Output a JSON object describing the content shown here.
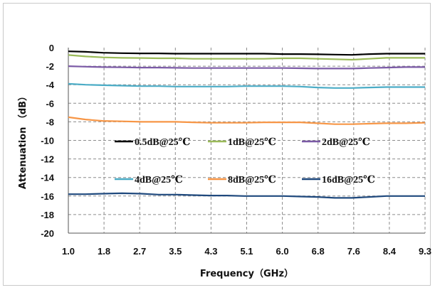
{
  "chart_data": {
    "type": "line",
    "title": "",
    "xlabel": "Frequency（GHz）",
    "ylabel": "Attenuation （dB）",
    "x_tick_labels": [
      "1.0",
      "1.8",
      "2.7",
      "3.5",
      "4.3",
      "5.1",
      "6.0",
      "6.8",
      "7.6",
      "8.4",
      "9.3"
    ],
    "y_tick_labels": [
      "0",
      "-2",
      "-4",
      "-6",
      "-8",
      "-10",
      "-12",
      "-14",
      "-16",
      "-18",
      "-20"
    ],
    "xlim": [
      1.0,
      9.3
    ],
    "ylim": [
      -20,
      0
    ],
    "grid": "dashed",
    "legend_position": "inside-center",
    "x": [
      1.0,
      1.4,
      1.8,
      2.25,
      2.7,
      3.1,
      3.5,
      3.9,
      4.3,
      4.7,
      5.1,
      5.55,
      6.0,
      6.4,
      6.8,
      7.2,
      7.6,
      8.0,
      8.4,
      8.85,
      9.3
    ],
    "series": [
      {
        "name": "0.5dB@25℃",
        "color": "#000000",
        "values": [
          -0.4,
          -0.45,
          -0.55,
          -0.6,
          -0.62,
          -0.62,
          -0.65,
          -0.65,
          -0.65,
          -0.65,
          -0.65,
          -0.65,
          -0.7,
          -0.7,
          -0.72,
          -0.75,
          -0.78,
          -0.7,
          -0.65,
          -0.65,
          -0.65
        ]
      },
      {
        "name": "1dB@25℃",
        "color": "#9bbb59",
        "values": [
          -0.8,
          -0.95,
          -1.05,
          -1.1,
          -1.12,
          -1.15,
          -1.15,
          -1.2,
          -1.2,
          -1.2,
          -1.2,
          -1.2,
          -1.15,
          -1.15,
          -1.2,
          -1.25,
          -1.3,
          -1.2,
          -1.1,
          -1.1,
          -1.1
        ]
      },
      {
        "name": "2dB@25℃",
        "color": "#7b5aa6",
        "values": [
          -2.0,
          -2.05,
          -2.1,
          -2.12,
          -2.15,
          -2.15,
          -2.18,
          -2.2,
          -2.2,
          -2.2,
          -2.2,
          -2.2,
          -2.2,
          -2.22,
          -2.25,
          -2.25,
          -2.25,
          -2.2,
          -2.15,
          -2.1,
          -2.1
        ]
      },
      {
        "name": "4dB@25℃",
        "color": "#4bacc6",
        "values": [
          -3.9,
          -4.0,
          -4.05,
          -4.1,
          -4.15,
          -4.15,
          -4.2,
          -4.2,
          -4.2,
          -4.2,
          -4.15,
          -4.15,
          -4.15,
          -4.2,
          -4.3,
          -4.35,
          -4.35,
          -4.3,
          -4.25,
          -4.25,
          -4.25
        ]
      },
      {
        "name": "8dB@25℃",
        "color": "#f79646",
        "values": [
          -7.5,
          -7.75,
          -7.9,
          -7.95,
          -8.0,
          -8.0,
          -8.0,
          -8.05,
          -8.1,
          -8.1,
          -8.1,
          -8.05,
          -8.05,
          -8.05,
          -8.15,
          -8.25,
          -8.25,
          -8.2,
          -8.15,
          -8.15,
          -8.1
        ]
      },
      {
        "name": "16dB@25℃",
        "color": "#1f497d",
        "values": [
          -15.8,
          -15.8,
          -15.75,
          -15.7,
          -15.75,
          -15.85,
          -15.85,
          -15.9,
          -15.95,
          -15.95,
          -16.0,
          -16.0,
          -16.0,
          -16.05,
          -16.1,
          -16.2,
          -16.2,
          -16.1,
          -16.0,
          -16.0,
          -16.0
        ]
      }
    ]
  }
}
